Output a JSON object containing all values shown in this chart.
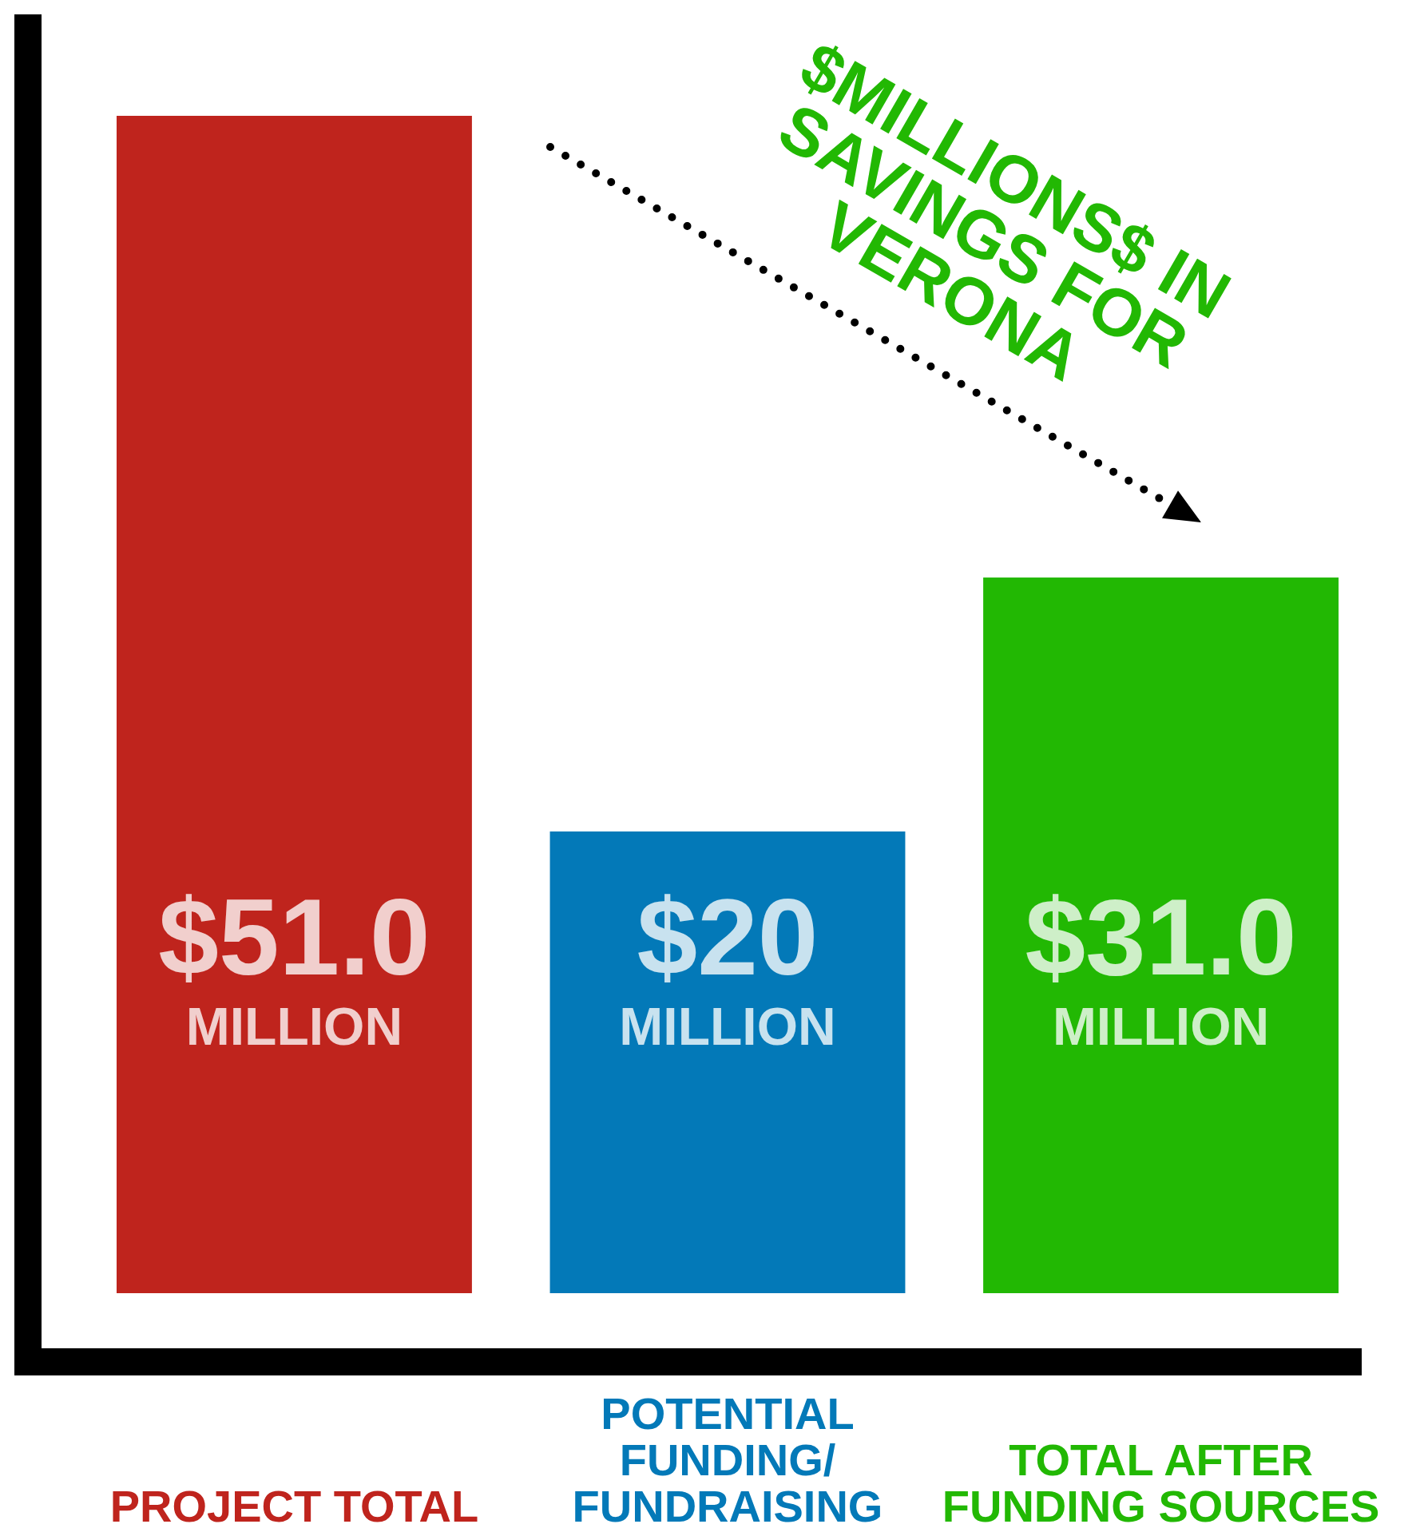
{
  "chart_data": {
    "type": "bar",
    "categories": [
      "PROJECT TOTAL",
      "POTENTIAL FUNDING/ FUNDRAISING",
      "TOTAL AFTER FUNDING SOURCES"
    ],
    "values": [
      51.0,
      20,
      31.0
    ],
    "colors": [
      "#bf241d",
      "#0379b8",
      "#22b803"
    ],
    "value_labels": [
      "$51.0 MILLION",
      "$20 MILLION",
      "$31.0 MILLION"
    ],
    "tick_labels": "x",
    "annotations": [
      "$MILLIONS$ IN SAVINGS FOR VERONA"
    ]
  }
}
